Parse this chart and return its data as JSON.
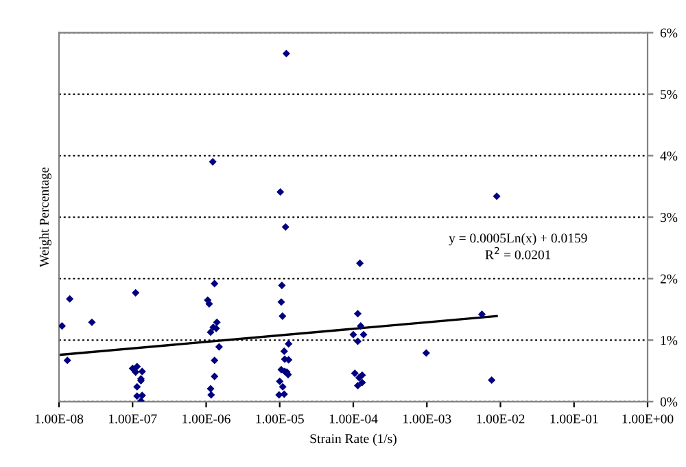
{
  "chart_data": {
    "type": "scatter",
    "xlabel": "Strain Rate (1/s)",
    "ylabel": "Weight Percentage",
    "annotations": [
      "y = 0.0005Ln(x) + 0.0159",
      "R$^{2}$ = 0.0201"
    ],
    "log": "x",
    "grid": "y",
    "xlim": [
      1e-08,
      1
    ],
    "xticks": [
      {
        "value": 1e-08,
        "label": "1.00E-08"
      },
      {
        "value": 1e-07,
        "label": "1.00E-07"
      },
      {
        "value": 1e-06,
        "label": "1.00E-06"
      },
      {
        "value": 1e-05,
        "label": "1.00E-05"
      },
      {
        "value": 0.0001,
        "label": "1.00E-04"
      },
      {
        "value": 0.001,
        "label": "1.00E-03"
      },
      {
        "value": 0.01,
        "label": "1.00E-02"
      },
      {
        "value": 0.1,
        "label": "1.00E-01"
      },
      {
        "value": 1,
        "label": "1.00E+00"
      }
    ],
    "ylim": [
      0,
      6
    ],
    "yticks": [
      {
        "value": 0,
        "label": "0%"
      },
      {
        "value": 1,
        "label": "1%"
      },
      {
        "value": 2,
        "label": "2%"
      },
      {
        "value": 3,
        "label": "3%"
      },
      {
        "value": 4,
        "label": "4%"
      },
      {
        "value": 5,
        "label": "5%"
      },
      {
        "value": 6,
        "label": "6%"
      }
    ],
    "series": [
      {
        "color": "#000080",
        "marker": "diamond",
        "x": [
          1.1e-08,
          1.4e-08,
          1.3e-08,
          2.8e-08,
          1.1e-07,
          1e-07,
          1.15e-07,
          1.1e-07,
          1.35e-07,
          1.3e-07,
          1.3e-07,
          1.15e-07,
          1.15e-07,
          1.35e-07,
          1.3e-07,
          1.23e-06,
          1.3e-06,
          1.05e-06,
          1.1e-06,
          1.4e-06,
          1.25e-06,
          1.37e-06,
          1.15e-06,
          1.5e-06,
          1.3e-06,
          1.3e-06,
          1.15e-06,
          1.17e-06,
          1.23e-05,
          1.02e-05,
          1.2e-05,
          1.07e-05,
          1.05e-05,
          1.09e-05,
          1.32e-05,
          1.15e-05,
          1.17e-05,
          1.32e-05,
          1.05e-05,
          1.17e-05,
          1.25e-05,
          1.3e-05,
          1e-05,
          1.1e-05,
          9.8e-06,
          1.15e-05,
          0.000123,
          0.000115,
          0.000126,
          0.0001,
          0.000138,
          0.000115,
          0.000105,
          0.000132,
          0.00012,
          0.000132,
          0.000115,
          0.00098,
          0.0056,
          0.0089,
          0.0076
        ],
        "values": [
          1.23,
          1.67,
          0.67,
          1.29,
          1.77,
          0.54,
          0.57,
          0.48,
          0.49,
          0.37,
          0.34,
          0.24,
          0.09,
          0.1,
          0.01,
          3.9,
          1.92,
          1.65,
          1.59,
          1.29,
          1.21,
          1.19,
          1.13,
          0.89,
          0.67,
          0.41,
          0.21,
          0.11,
          5.66,
          3.41,
          2.84,
          1.89,
          1.62,
          1.39,
          0.94,
          0.82,
          0.69,
          0.68,
          0.52,
          0.49,
          0.48,
          0.44,
          0.33,
          0.24,
          0.11,
          0.12,
          2.25,
          1.43,
          1.23,
          1.09,
          1.09,
          0.98,
          0.46,
          0.43,
          0.39,
          0.31,
          0.26,
          0.79,
          1.42,
          3.34,
          0.35
        ]
      },
      {
        "type": "line",
        "marker": "none",
        "color": "#000000",
        "x": [
          1e-08,
          0.0089
        ],
        "values": [
          0.76,
          1.39
        ]
      }
    ]
  }
}
